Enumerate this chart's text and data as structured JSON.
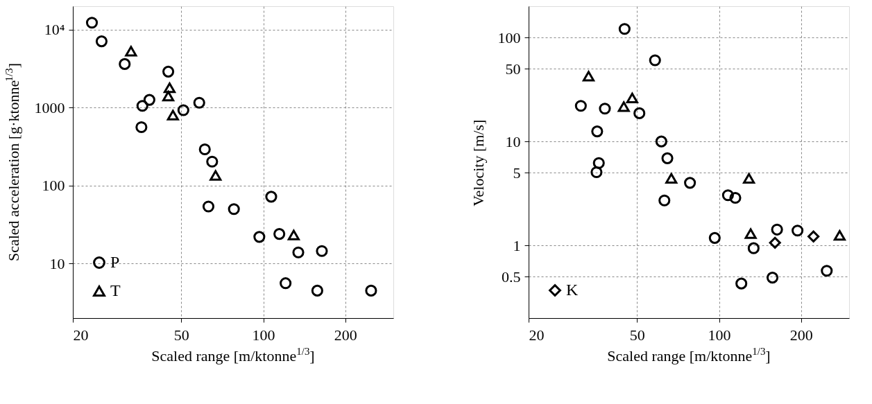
{
  "chart_data": [
    {
      "type": "scatter",
      "xlabel": "Scaled range [m/ktonne$^{1/3}$]",
      "ylabel": "Scaled acceleration [g·ktonne$^{1/3}$]",
      "log": "xy",
      "grid": true,
      "legend": "bottom left",
      "xlim": [
        20,
        300
      ],
      "ylim": [
        2,
        20000
      ],
      "xticks": [
        20,
        50,
        100,
        200
      ],
      "yticks": [
        10,
        100,
        1000,
        {
          "value": 10000,
          "label": "10⁴"
        }
      ],
      "series": [
        {
          "name": "P",
          "color": "#000000",
          "marker": "circle",
          "x": [
            23.5,
            25.5,
            31.0,
            44.8,
            38.2,
            36.0,
            35.7,
            50.9,
            58.2,
            61.0,
            64.9,
            106.9,
            62.9,
            78.0,
            96.7,
            114.5,
            134.4,
            164,
            120.7,
            157.8,
            248.6
          ],
          "values": [
            12300,
            7100,
            3630,
            2900,
            1260,
            1055,
            562,
            929,
            1157,
            292,
            203,
            72,
            54,
            50,
            22,
            24,
            13.9,
            14.5,
            5.6,
            4.5,
            4.5
          ]
        },
        {
          "name": "T",
          "color": "#000000",
          "marker": "triangle",
          "x": [
            32.7,
            45.3,
            44.8,
            46.6,
            66.8,
            129.3
          ],
          "values": [
            5300,
            1800,
            1410,
            804,
            135,
            23.3
          ]
        }
      ]
    },
    {
      "type": "scatter",
      "xlabel": "Scaled range [m/ktonne$^{1/3}$]",
      "ylabel": "Velocity [m/s]",
      "log": "xy",
      "grid": true,
      "legend": "bottom left",
      "xlim": [
        20,
        300
      ],
      "ylim": [
        0.2,
        200
      ],
      "xticks": [
        20,
        50,
        100,
        200
      ],
      "yticks": [
        0.5,
        1,
        5,
        10,
        50,
        100
      ],
      "series": [
        {
          "color": "#000000",
          "marker": "circle",
          "x": [
            45.0,
            58.2,
            31.1,
            38.1,
            51.0,
            35.7,
            61.4,
            64.6,
            36.2,
            35.5,
            78.2,
            63.0,
            107.8,
            114.7,
            96.4,
            133.9,
            163.2,
            194,
            120.7,
            157,
            248.4
          ],
          "values": [
            121,
            60.4,
            22.0,
            20.7,
            18.7,
            12.5,
            10.0,
            6.9,
            6.2,
            5.06,
            4.0,
            2.71,
            3.04,
            2.87,
            1.18,
            0.94,
            1.42,
            1.39,
            0.43,
            0.49,
            0.57
          ]
        },
        {
          "color": "#000000",
          "marker": "triangle",
          "x": [
            33.2,
            48.0,
            44.7,
            66.8,
            128.7,
            130.6,
            277
          ],
          "values": [
            42.5,
            26.2,
            21.6,
            4.42,
            4.42,
            1.3,
            1.25
          ]
        },
        {
          "name": "K",
          "color": "#000000",
          "marker": "diamond",
          "x": [
            160.4,
            222
          ],
          "values": [
            1.06,
            1.22
          ]
        }
      ]
    }
  ]
}
